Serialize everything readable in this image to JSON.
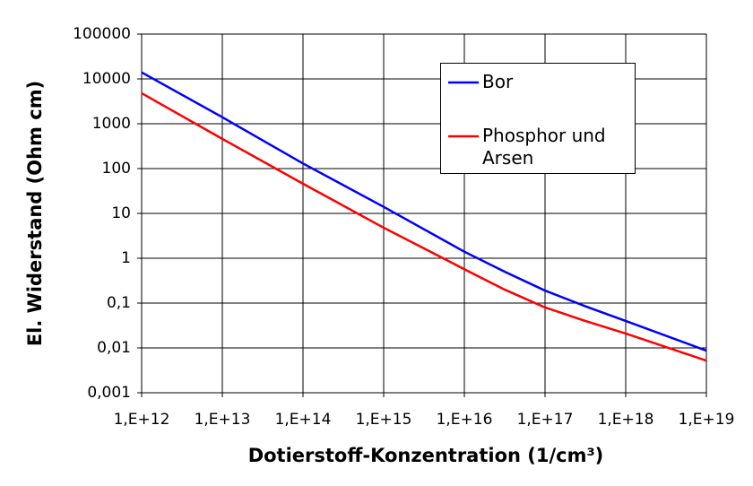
{
  "chart_data": {
    "type": "line",
    "x_label": "Dotierstoff-Konzentration (1/cm³)",
    "y_label": "El. Widerstand (Ohm cm)",
    "x": [
      1000000000000.0,
      10000000000000.0,
      100000000000000.0,
      1000000000000000.0,
      1e+16,
      3.16e+16,
      1e+17,
      3.16e+17,
      1e+18,
      1e+19
    ],
    "series": [
      {
        "name": "Bor",
        "color": "#0000ff",
        "values": [
          14000,
          1400,
          130,
          14,
          1.4,
          0.5,
          0.19,
          0.085,
          0.04,
          0.0087
        ]
      },
      {
        "name": "Phosphor und Arsen",
        "color": "#ff0000",
        "values": [
          4800,
          460,
          46,
          4.8,
          0.57,
          0.2,
          0.08,
          0.04,
          0.021,
          0.0052
        ]
      }
    ],
    "xscale": "log",
    "yscale": "log",
    "xlim": [
      1000000000000.0,
      1e+19
    ],
    "ylim": [
      0.001,
      100000
    ],
    "xticks": [
      {
        "value": 1000000000000.0,
        "label": "1,E+12"
      },
      {
        "value": 10000000000000.0,
        "label": "1,E+13"
      },
      {
        "value": 100000000000000.0,
        "label": "1,E+14"
      },
      {
        "value": 1000000000000000.0,
        "label": "1,E+15"
      },
      {
        "value": 1e+16,
        "label": "1,E+16"
      },
      {
        "value": 1e+17,
        "label": "1,E+17"
      },
      {
        "value": 1e+18,
        "label": "1,E+18"
      },
      {
        "value": 1e+19,
        "label": "1,E+19"
      }
    ],
    "yticks": [
      {
        "value": 0.001,
        "label": "0,001"
      },
      {
        "value": 0.01,
        "label": "0,01"
      },
      {
        "value": 0.1,
        "label": "0,1"
      },
      1,
      10,
      100,
      1000,
      10000,
      100000
    ],
    "grid": true
  }
}
